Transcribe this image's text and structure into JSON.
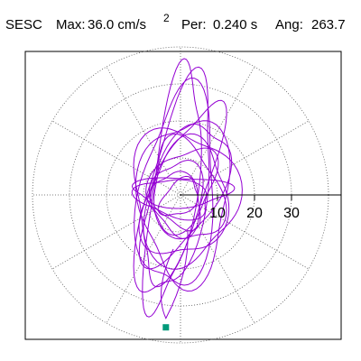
{
  "header": {
    "station": "SESC",
    "max_label": "Max:",
    "max_value": "36.0 cm/s",
    "max_exp": "2",
    "per_label": "Per:",
    "per_value": "0.240 s",
    "ang_label": "Ang:",
    "ang_value": "263.7"
  },
  "chart_data": {
    "type": "polar-particle-motion",
    "title": "SESC   Max:  36.0 cm/s²   Per:  0.240 s   Ang: 263.7",
    "units": "cm/s²",
    "max": 36.0,
    "period_s": 0.24,
    "angle_deg": 263.7,
    "radial_ticks": [
      10,
      20,
      30
    ],
    "radial_tick_labels": [
      "10",
      "20",
      "30"
    ],
    "rings": [
      10,
      20,
      30,
      40
    ],
    "spokes_deg": [
      0,
      30,
      60,
      90,
      120,
      150,
      180,
      210,
      240,
      270,
      300,
      330
    ],
    "peak_marker": {
      "angle_deg": 263.7,
      "radius": 36.0
    },
    "trace_lobes": [
      {
        "major": 33,
        "minor": 6,
        "orient_deg": 82
      },
      {
        "major": 30,
        "minor": 8,
        "orient_deg": 78
      },
      {
        "major": 27,
        "minor": 10,
        "orient_deg": 84
      },
      {
        "major": 25,
        "minor": 7,
        "orient_deg": 70
      },
      {
        "major": 22,
        "minor": 12,
        "orient_deg": 88
      },
      {
        "major": 20,
        "minor": 9,
        "orient_deg": 65
      },
      {
        "major": 18,
        "minor": 14,
        "orient_deg": 95
      },
      {
        "major": 16,
        "minor": 11,
        "orient_deg": 75
      },
      {
        "major": 14,
        "minor": 9,
        "orient_deg": 105
      },
      {
        "major": 12,
        "minor": 8,
        "orient_deg": 60
      },
      {
        "major": 10,
        "minor": 7,
        "orient_deg": 90
      },
      {
        "major": 8,
        "minor": 6,
        "orient_deg": 120
      },
      {
        "major": 6,
        "minor": 4,
        "orient_deg": 45
      },
      {
        "major": 13,
        "minor": 4,
        "orient_deg": 0
      },
      {
        "major": 10,
        "minor": 5,
        "orient_deg": 170
      }
    ],
    "colors": {
      "trace": "#9400d3",
      "grid": "#555555",
      "axis": "#000000",
      "marker": "#009a7a"
    }
  }
}
